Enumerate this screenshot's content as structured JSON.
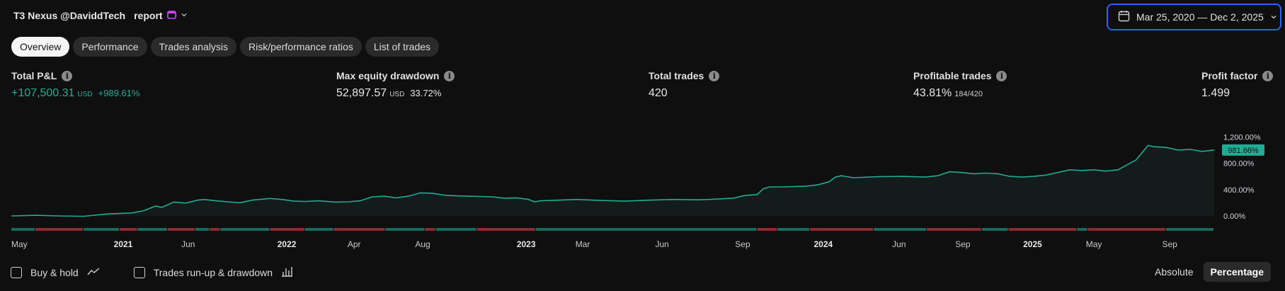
{
  "header": {
    "title_prefix": "T3 Nexus @DaviddTech",
    "title_glyph": "",
    "title_suffix": "report",
    "date_range": "Mar 25, 2020 — Dec 2, 2025"
  },
  "tabs": [
    "Overview",
    "Performance",
    "Trades analysis",
    "Risk/performance ratios",
    "List of trades"
  ],
  "stats": {
    "pnl": {
      "label": "Total P&L",
      "value": "+107,500.31",
      "currency": "USD",
      "percent": "+989.61%"
    },
    "drawdown": {
      "label": "Max equity drawdown",
      "value": "52,897.57",
      "currency": "USD",
      "percent": "33.72%"
    },
    "trades": {
      "label": "Total trades",
      "value": "420"
    },
    "profitable": {
      "label": "Profitable trades",
      "value": "43.81%",
      "ratio": "184/420"
    },
    "profit_factor": {
      "label": "Profit factor",
      "value": "1.499"
    }
  },
  "chart_data": {
    "type": "area",
    "y_ticks": [
      "1,200.00%",
      "800.00%",
      "400.00%",
      "0.00%"
    ],
    "ylim": [
      0,
      1450
    ],
    "current_label": "981.66%",
    "x_labels": [
      {
        "text": "May",
        "pos": 0.0,
        "bold": false
      },
      {
        "text": "2021",
        "pos": 0.093,
        "bold": true
      },
      {
        "text": "Jun",
        "pos": 0.147,
        "bold": false
      },
      {
        "text": "2022",
        "pos": 0.229,
        "bold": true
      },
      {
        "text": "Apr",
        "pos": 0.285,
        "bold": false
      },
      {
        "text": "Aug",
        "pos": 0.342,
        "bold": false
      },
      {
        "text": "2023",
        "pos": 0.428,
        "bold": true
      },
      {
        "text": "Mar",
        "pos": 0.475,
        "bold": false
      },
      {
        "text": "Jun",
        "pos": 0.541,
        "bold": false
      },
      {
        "text": "Sep",
        "pos": 0.608,
        "bold": false
      },
      {
        "text": "2024",
        "pos": 0.675,
        "bold": true
      },
      {
        "text": "Jun",
        "pos": 0.738,
        "bold": false
      },
      {
        "text": "Sep",
        "pos": 0.791,
        "bold": false
      },
      {
        "text": "2025",
        "pos": 0.849,
        "bold": true
      },
      {
        "text": "May",
        "pos": 0.9,
        "bold": false
      },
      {
        "text": "Sep",
        "pos": 0.963,
        "bold": false
      }
    ],
    "equity": [
      [
        0,
        0
      ],
      [
        0.02,
        10
      ],
      [
        0.04,
        0
      ],
      [
        0.06,
        -5
      ],
      [
        0.08,
        30
      ],
      [
        0.1,
        45
      ],
      [
        0.11,
        80
      ],
      [
        0.12,
        150
      ],
      [
        0.125,
        130
      ],
      [
        0.135,
        210
      ],
      [
        0.145,
        195
      ],
      [
        0.155,
        240
      ],
      [
        0.16,
        250
      ],
      [
        0.17,
        230
      ],
      [
        0.18,
        215
      ],
      [
        0.19,
        200
      ],
      [
        0.2,
        240
      ],
      [
        0.215,
        265
      ],
      [
        0.225,
        250
      ],
      [
        0.235,
        225
      ],
      [
        0.245,
        220
      ],
      [
        0.255,
        230
      ],
      [
        0.27,
        210
      ],
      [
        0.28,
        215
      ],
      [
        0.29,
        230
      ],
      [
        0.3,
        290
      ],
      [
        0.31,
        300
      ],
      [
        0.32,
        275
      ],
      [
        0.33,
        300
      ],
      [
        0.34,
        350
      ],
      [
        0.35,
        345
      ],
      [
        0.36,
        315
      ],
      [
        0.37,
        305
      ],
      [
        0.38,
        300
      ],
      [
        0.39,
        295
      ],
      [
        0.4,
        290
      ],
      [
        0.41,
        270
      ],
      [
        0.42,
        275
      ],
      [
        0.43,
        250
      ],
      [
        0.435,
        215
      ],
      [
        0.44,
        230
      ],
      [
        0.455,
        240
      ],
      [
        0.47,
        250
      ],
      [
        0.49,
        235
      ],
      [
        0.51,
        225
      ],
      [
        0.53,
        240
      ],
      [
        0.55,
        250
      ],
      [
        0.57,
        245
      ],
      [
        0.58,
        250
      ],
      [
        0.6,
        270
      ],
      [
        0.61,
        310
      ],
      [
        0.62,
        325
      ],
      [
        0.625,
        410
      ],
      [
        0.63,
        440
      ],
      [
        0.64,
        440
      ],
      [
        0.66,
        450
      ],
      [
        0.67,
        470
      ],
      [
        0.68,
        520
      ],
      [
        0.685,
        590
      ],
      [
        0.69,
        610
      ],
      [
        0.7,
        580
      ],
      [
        0.72,
        595
      ],
      [
        0.74,
        600
      ],
      [
        0.76,
        590
      ],
      [
        0.77,
        610
      ],
      [
        0.78,
        670
      ],
      [
        0.79,
        660
      ],
      [
        0.8,
        640
      ],
      [
        0.81,
        650
      ],
      [
        0.82,
        640
      ],
      [
        0.83,
        600
      ],
      [
        0.84,
        590
      ],
      [
        0.85,
        600
      ],
      [
        0.86,
        620
      ],
      [
        0.87,
        660
      ],
      [
        0.88,
        700
      ],
      [
        0.89,
        690
      ],
      [
        0.9,
        700
      ],
      [
        0.91,
        680
      ],
      [
        0.92,
        700
      ],
      [
        0.935,
        850
      ],
      [
        0.945,
        1070
      ],
      [
        0.95,
        1050
      ],
      [
        0.96,
        1040
      ],
      [
        0.97,
        1000
      ],
      [
        0.98,
        1010
      ],
      [
        0.99,
        980
      ],
      [
        1.0,
        1000
      ]
    ],
    "trade_bar": {
      "colors": {
        "win": "#156b5c",
        "loss": "#8c2a33"
      },
      "segments": [
        [
          "win",
          0.02
        ],
        [
          "loss",
          0.06
        ],
        [
          "win",
          0.09
        ],
        [
          "loss",
          0.105
        ],
        [
          "win",
          0.13
        ],
        [
          "loss",
          0.153
        ],
        [
          "win",
          0.165
        ],
        [
          "loss",
          0.174
        ],
        [
          "win",
          0.215
        ],
        [
          "loss",
          0.244
        ],
        [
          "win",
          0.268
        ],
        [
          "loss",
          0.311
        ],
        [
          "win",
          0.344
        ],
        [
          "loss",
          0.353
        ],
        [
          "win",
          0.387
        ],
        [
          "loss",
          0.436
        ],
        [
          "win",
          0.62
        ],
        [
          "loss",
          0.637
        ],
        [
          "win",
          0.664
        ],
        [
          "loss",
          0.717
        ],
        [
          "win",
          0.761
        ],
        [
          "loss",
          0.807
        ],
        [
          "win",
          0.829
        ],
        [
          "loss",
          0.886
        ],
        [
          "win",
          0.895
        ],
        [
          "loss",
          0.96
        ],
        [
          "win",
          1.0
        ]
      ]
    },
    "colors": {
      "line": "#22ab94",
      "area": "#131c1a",
      "label_bg": "#22ab94"
    }
  },
  "footer": {
    "buy_hold": "Buy & hold",
    "runup": "Trades run-up & drawdown",
    "absolute": "Absolute",
    "percentage": "Percentage"
  }
}
